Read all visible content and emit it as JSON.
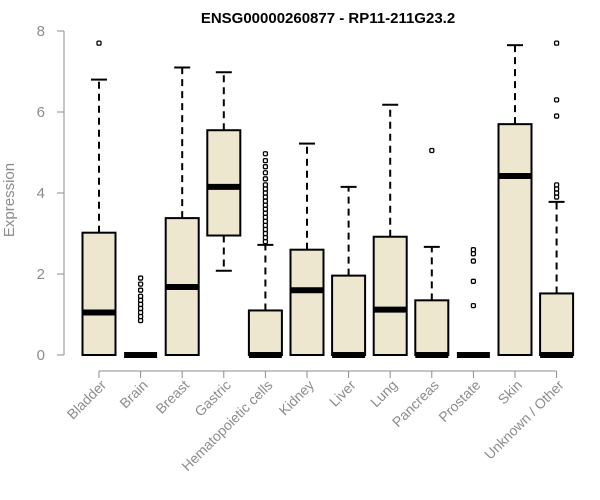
{
  "chart_data": {
    "type": "box",
    "title": "ENSG00000260877 - RP11-211G23.2",
    "ylabel": "Expression",
    "ylim": [
      0,
      8
    ],
    "yticks": [
      0,
      2,
      4,
      6,
      8
    ],
    "box_fill": "#ede7cf",
    "categories": [
      "Bladder",
      "Brain",
      "Breast",
      "Gastric",
      "Hematopoietic cells",
      "Kidney",
      "Liver",
      "Lung",
      "Pancreas",
      "Prostate",
      "Skin",
      "Unknown / Other"
    ],
    "boxes": [
      {
        "category": "Bladder",
        "whisker_low": 0,
        "q1": 0,
        "median": 1.05,
        "q3": 3.02,
        "whisker_high": 6.8,
        "outliers": [
          7.7
        ]
      },
      {
        "category": "Brain",
        "whisker_low": 0,
        "q1": 0,
        "median": 0,
        "q3": 0,
        "whisker_high": 0,
        "outliers": [
          0.85,
          0.95,
          1.05,
          1.15,
          1.25,
          1.35,
          1.45,
          1.6,
          1.75,
          1.9
        ]
      },
      {
        "category": "Breast",
        "whisker_low": 0,
        "q1": 0,
        "median": 1.68,
        "q3": 3.38,
        "whisker_high": 7.1,
        "outliers": []
      },
      {
        "category": "Gastric",
        "whisker_low": 2.08,
        "q1": 2.95,
        "median": 4.15,
        "q3": 5.55,
        "whisker_high": 6.98,
        "outliers": []
      },
      {
        "category": "Hematopoietic cells",
        "whisker_low": 0,
        "q1": 0,
        "median": 0,
        "q3": 1.1,
        "whisker_high": 2.72,
        "outliers": [
          2.8,
          2.9,
          3.0,
          3.1,
          3.2,
          3.3,
          3.4,
          3.5,
          3.6,
          3.7,
          3.8,
          3.9,
          4.0,
          4.1,
          4.2,
          4.35,
          4.5,
          4.65,
          4.8,
          4.97
        ]
      },
      {
        "category": "Kidney",
        "whisker_low": 0,
        "q1": 0,
        "median": 1.6,
        "q3": 2.6,
        "whisker_high": 5.22,
        "outliers": []
      },
      {
        "category": "Liver",
        "whisker_low": 0,
        "q1": 0,
        "median": 0,
        "q3": 1.96,
        "whisker_high": 4.15,
        "outliers": []
      },
      {
        "category": "Lung",
        "whisker_low": 0,
        "q1": 0,
        "median": 1.12,
        "q3": 2.92,
        "whisker_high": 6.18,
        "outliers": []
      },
      {
        "category": "Pancreas",
        "whisker_low": 0,
        "q1": 0,
        "median": 0,
        "q3": 1.35,
        "whisker_high": 2.67,
        "outliers": [
          5.05
        ]
      },
      {
        "category": "Prostate",
        "whisker_low": 0,
        "q1": 0,
        "median": 0,
        "q3": 0,
        "whisker_high": 0,
        "outliers": [
          1.22,
          1.82,
          2.32,
          2.5,
          2.6
        ]
      },
      {
        "category": "Skin",
        "whisker_low": 0,
        "q1": 0,
        "median": 4.42,
        "q3": 5.7,
        "whisker_high": 7.65,
        "outliers": []
      },
      {
        "category": "Unknown / Other",
        "whisker_low": 0,
        "q1": 0,
        "median": 0,
        "q3": 1.52,
        "whisker_high": 3.78,
        "outliers": [
          3.9,
          4.0,
          4.1,
          4.2,
          5.9,
          6.3,
          7.7
        ]
      }
    ]
  }
}
